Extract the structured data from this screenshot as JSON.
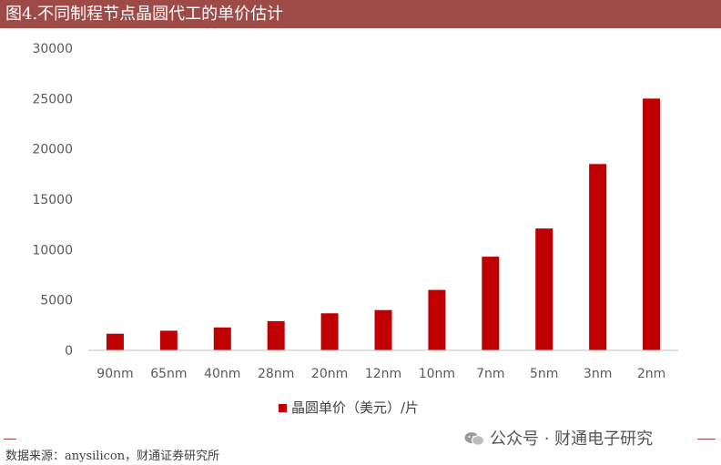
{
  "header": {
    "title": "图4.不同制程节点晶圆代工的单价估计"
  },
  "colors": {
    "bar": "#c00000",
    "title_bg": "#9e4a46",
    "axis": "#bfbfbf"
  },
  "chart_data": {
    "type": "bar",
    "title": "图4.不同制程节点晶圆代工的单价估计",
    "categories": [
      "90nm",
      "65nm",
      "40nm",
      "28nm",
      "20nm",
      "12nm",
      "10nm",
      "7nm",
      "5nm",
      "3nm",
      "2nm"
    ],
    "series": [
      {
        "name": "晶圆单价（美元）/片",
        "values": [
          1650,
          1950,
          2270,
          2900,
          3680,
          4000,
          6000,
          9300,
          12100,
          18500,
          25000
        ]
      }
    ],
    "ylim": [
      0,
      30000
    ],
    "yticks": [
      "0",
      "5000",
      "10000",
      "15000",
      "20000",
      "25000",
      "30000"
    ],
    "xlabel": "",
    "ylabel": "",
    "grid": false,
    "legend": "bottom"
  },
  "footer": {
    "source": "数据来源：anysilicon，财通证券研究所",
    "watermark": "公众号 · 财通电子研究"
  }
}
